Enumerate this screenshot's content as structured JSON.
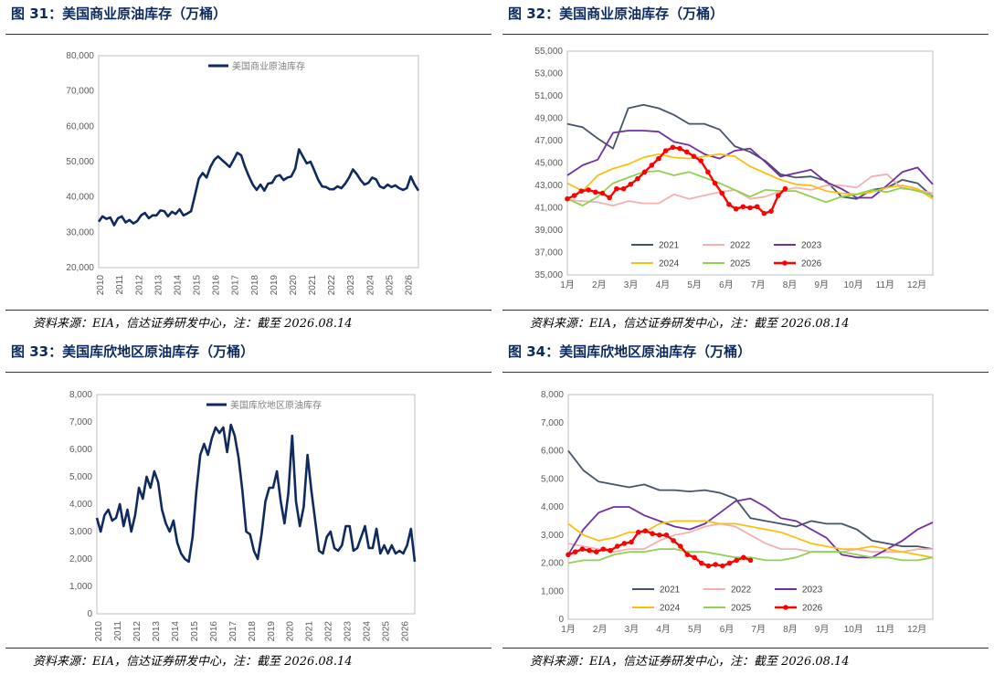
{
  "panels": [
    {
      "title": "图 31：美国商业原油库存（万桶）",
      "source": "资料来源：EIA，信达证券研发中心，注：截至 2026.08.14"
    },
    {
      "title": "图 32：美国商业原油库存（万桶）",
      "source": "资料来源：EIA，信达证券研发中心，注：截至 2026.08.14"
    },
    {
      "title": "图 33：美国库欣地区原油库存（万桶）",
      "source": "资料来源：EIA，信达证券研发中心，注：截至 2026.08.14"
    },
    {
      "title": "图 34：美国库欣地区原油库存（万桶）",
      "source": "资料来源：EIA，信达证券研发中心，注：截至 2026.08.14"
    }
  ],
  "chart_data": [
    {
      "type": "line",
      "title": "",
      "legend": [
        "美国商业原油库存"
      ],
      "legend_position": "top",
      "color": "#0f2a5e",
      "ylim": [
        20000,
        80000
      ],
      "yticks": [
        "20,000",
        "30,000",
        "40,000",
        "50,000",
        "60,000",
        "70,000",
        "80,000"
      ],
      "xticks": [
        "2010",
        "2011",
        "2012",
        "2013",
        "2014",
        "2015",
        "2016",
        "2017",
        "2018",
        "2019",
        "2020",
        "2021",
        "2022",
        "2023",
        "2024",
        "2025",
        "2026"
      ],
      "xlim": [
        2010,
        2026.6
      ],
      "x": [
        2010.0,
        2010.2,
        2010.4,
        2010.6,
        2010.8,
        2011.0,
        2011.2,
        2011.4,
        2011.6,
        2011.8,
        2012.0,
        2012.2,
        2012.4,
        2012.6,
        2012.8,
        2013.0,
        2013.2,
        2013.4,
        2013.6,
        2013.8,
        2014.0,
        2014.2,
        2014.4,
        2014.6,
        2014.8,
        2015.0,
        2015.2,
        2015.4,
        2015.6,
        2015.8,
        2016.0,
        2016.2,
        2016.4,
        2016.6,
        2016.8,
        2017.0,
        2017.2,
        2017.4,
        2017.6,
        2017.8,
        2018.0,
        2018.2,
        2018.4,
        2018.6,
        2018.8,
        2019.0,
        2019.2,
        2019.4,
        2019.6,
        2019.8,
        2020.0,
        2020.2,
        2020.4,
        2020.6,
        2020.8,
        2021.0,
        2021.2,
        2021.4,
        2021.6,
        2021.8,
        2022.0,
        2022.2,
        2022.4,
        2022.6,
        2022.8,
        2023.0,
        2023.2,
        2023.4,
        2023.6,
        2023.8,
        2024.0,
        2024.2,
        2024.4,
        2024.6,
        2024.8,
        2025.0,
        2025.2,
        2025.4,
        2025.6,
        2025.8,
        2026.0,
        2026.2,
        2026.4,
        2026.6
      ],
      "values": [
        33000,
        34500,
        33800,
        34200,
        32000,
        34000,
        34500,
        32800,
        33500,
        32500,
        33200,
        34800,
        35500,
        34000,
        34800,
        34800,
        36200,
        36000,
        34500,
        35800,
        35200,
        36500,
        34800,
        35300,
        36000,
        40500,
        45200,
        46800,
        45500,
        48500,
        50500,
        51500,
        50500,
        49500,
        48500,
        50500,
        52500,
        51800,
        48500,
        45800,
        43500,
        42000,
        43500,
        41800,
        43800,
        44000,
        45800,
        46200,
        44800,
        45500,
        45800,
        48000,
        53500,
        51500,
        49500,
        50000,
        47500,
        44800,
        43000,
        42800,
        42200,
        42200,
        43000,
        42500,
        43800,
        45500,
        47800,
        46500,
        44800,
        43500,
        44000,
        45500,
        45000,
        43000,
        42500,
        43500,
        42800,
        43300,
        42500,
        42000,
        42500,
        45800,
        43500,
        41800
      ]
    },
    {
      "type": "line",
      "title": "",
      "ylim": [
        35000,
        55000
      ],
      "yticks": [
        "35,000",
        "37,000",
        "39,000",
        "41,000",
        "43,000",
        "45,000",
        "47,000",
        "49,000",
        "51,000",
        "53,000",
        "55,000"
      ],
      "xticks": [
        "1月",
        "2月",
        "3月",
        "4月",
        "5月",
        "6月",
        "7月",
        "8月",
        "9月",
        "10月",
        "11月",
        "12月"
      ],
      "legend_position": "bottom-left",
      "series": [
        {
          "name": "2021",
          "color": "#44546a",
          "values": [
            48500,
            48200,
            47200,
            46300,
            49900,
            50200,
            49900,
            49300,
            48500,
            48500,
            48000,
            46500,
            46000,
            45200,
            44000,
            43700,
            43800,
            43400,
            42000,
            41800,
            42600,
            42800,
            43500,
            43200,
            42000
          ]
        },
        {
          "name": "2022",
          "color": "#f4b1ae",
          "values": [
            41700,
            41600,
            41500,
            41200,
            41600,
            41400,
            41400,
            42200,
            41800,
            42100,
            42400,
            42600,
            41800,
            42000,
            42500,
            42800,
            42600,
            43000,
            43000,
            42800,
            43800,
            44000,
            42700,
            42600,
            42300
          ]
        },
        {
          "name": "2023",
          "color": "#7030a0",
          "values": [
            43900,
            44800,
            45300,
            47700,
            47900,
            47900,
            47800,
            46900,
            46600,
            45800,
            45400,
            46100,
            46300,
            45100,
            43800,
            44100,
            44400,
            43300,
            42700,
            41900,
            41900,
            43000,
            44200,
            44600,
            43100
          ]
        },
        {
          "name": "2024",
          "color": "#fbbf13",
          "values": [
            43200,
            42500,
            43900,
            44500,
            44900,
            45500,
            45800,
            45500,
            45400,
            45600,
            45800,
            45600,
            44700,
            44100,
            43500,
            43100,
            43000,
            42500,
            42300,
            42200,
            42400,
            42800,
            43000,
            42700,
            41800
          ]
        },
        {
          "name": "2025",
          "color": "#92d050",
          "values": [
            41800,
            41200,
            42000,
            43200,
            43700,
            44200,
            44300,
            43900,
            44200,
            43700,
            43200,
            42600,
            42000,
            42600,
            42500,
            42500,
            42000,
            41500,
            42000,
            42200,
            42600,
            42400,
            42800,
            42500,
            42100
          ]
        },
        {
          "name": "2026",
          "color": "#ff0000",
          "markers": true,
          "values": [
            41800,
            42100,
            42500,
            42600,
            42400,
            42300,
            41900,
            42700,
            42700,
            43100,
            43600,
            44200,
            44800,
            45400,
            46100,
            46400,
            46300,
            46000,
            45600,
            45200,
            44200,
            43200,
            42300,
            41300,
            40900,
            41100,
            41000,
            41100,
            40500,
            40700,
            42100,
            42700
          ]
        }
      ]
    },
    {
      "type": "line",
      "title": "",
      "legend": [
        "美国库欣地区原油库存"
      ],
      "legend_position": "top",
      "color": "#0f2a5e",
      "ylim": [
        0,
        8000
      ],
      "yticks": [
        "0",
        "1,000",
        "2,000",
        "3,000",
        "4,000",
        "5,000",
        "6,000",
        "7,000",
        "8,000"
      ],
      "xticks": [
        "2010",
        "2011",
        "2012",
        "2013",
        "2014",
        "2015",
        "2016",
        "2017",
        "2018",
        "2019",
        "2020",
        "2021",
        "2022",
        "2023",
        "2024",
        "2025",
        "2026"
      ],
      "xlim": [
        2010,
        2026.6
      ],
      "x": [
        2010.0,
        2010.2,
        2010.4,
        2010.6,
        2010.8,
        2011.0,
        2011.2,
        2011.4,
        2011.6,
        2011.8,
        2012.0,
        2012.2,
        2012.4,
        2012.6,
        2012.8,
        2013.0,
        2013.2,
        2013.4,
        2013.6,
        2013.8,
        2014.0,
        2014.2,
        2014.4,
        2014.6,
        2014.8,
        2015.0,
        2015.2,
        2015.4,
        2015.6,
        2015.8,
        2016.0,
        2016.2,
        2016.4,
        2016.6,
        2016.8,
        2017.0,
        2017.2,
        2017.4,
        2017.6,
        2017.8,
        2018.0,
        2018.2,
        2018.4,
        2018.6,
        2018.8,
        2019.0,
        2019.2,
        2019.4,
        2019.6,
        2019.8,
        2020.0,
        2020.2,
        2020.4,
        2020.6,
        2020.8,
        2021.0,
        2021.2,
        2021.4,
        2021.6,
        2021.8,
        2022.0,
        2022.2,
        2022.4,
        2022.6,
        2022.8,
        2023.0,
        2023.2,
        2023.4,
        2023.6,
        2023.8,
        2024.0,
        2024.2,
        2024.4,
        2024.6,
        2024.8,
        2025.0,
        2025.2,
        2025.4,
        2025.6,
        2025.8,
        2026.0,
        2026.2,
        2026.4,
        2026.6
      ],
      "values": [
        3500,
        3000,
        3600,
        3800,
        3400,
        3500,
        4000,
        3200,
        3800,
        3000,
        3600,
        4600,
        4200,
        5000,
        4600,
        5200,
        4800,
        3800,
        3300,
        3000,
        3400,
        2600,
        2200,
        2000,
        1900,
        2800,
        4500,
        5800,
        6200,
        5800,
        6400,
        6800,
        6600,
        6800,
        5900,
        6900,
        6500,
        5700,
        4500,
        3000,
        2900,
        2300,
        2000,
        2900,
        4100,
        4600,
        4600,
        5200,
        4100,
        3300,
        4400,
        6500,
        4100,
        3200,
        3900,
        5800,
        4500,
        3400,
        2300,
        2200,
        2800,
        3000,
        2400,
        2300,
        2500,
        3200,
        3200,
        2300,
        2400,
        2800,
        3200,
        2400,
        2400,
        3100,
        2200,
        2500,
        2200,
        2500,
        2200,
        2300,
        2200,
        2500,
        3100,
        1900
      ]
    },
    {
      "type": "line",
      "title": "",
      "ylim": [
        0,
        8000
      ],
      "yticks": [
        "0",
        "1,000",
        "2,000",
        "3,000",
        "4,000",
        "5,000",
        "6,000",
        "7,000",
        "8,000"
      ],
      "xticks": [
        "1月",
        "2月",
        "3月",
        "4月",
        "5月",
        "6月",
        "7月",
        "8月",
        "9月",
        "10月",
        "11月",
        "12月"
      ],
      "legend_position": "bottom-left",
      "series": [
        {
          "name": "2021",
          "color": "#44546a",
          "values": [
            6000,
            5300,
            4900,
            4800,
            4700,
            4800,
            4600,
            4600,
            4550,
            4600,
            4500,
            4300,
            3600,
            3500,
            3400,
            3300,
            3500,
            3400,
            3400,
            3200,
            2800,
            2700,
            2600,
            2600,
            2500
          ]
        },
        {
          "name": "2022",
          "color": "#f4b1ae",
          "values": [
            2700,
            2600,
            2500,
            2400,
            2500,
            2500,
            2800,
            3000,
            3100,
            3300,
            3400,
            3300,
            3000,
            2700,
            2500,
            2500,
            2400,
            2400,
            2400,
            2500,
            2400,
            2400,
            2400,
            2500,
            2500
          ]
        },
        {
          "name": "2023",
          "color": "#7030a0",
          "values": [
            2300,
            3200,
            3800,
            4000,
            4000,
            3700,
            3500,
            3300,
            3200,
            3400,
            3800,
            4200,
            4300,
            4000,
            3600,
            3500,
            3200,
            2900,
            2300,
            2200,
            2200,
            2500,
            2800,
            3200,
            3450
          ]
        },
        {
          "name": "2024",
          "color": "#fbbf13",
          "values": [
            3400,
            3000,
            2800,
            2900,
            3100,
            3100,
            3400,
            3500,
            3500,
            3500,
            3400,
            3400,
            3300,
            3200,
            3100,
            2900,
            2700,
            2600,
            2500,
            2500,
            2600,
            2500,
            2400,
            2300,
            2200
          ]
        },
        {
          "name": "2025",
          "color": "#92d050",
          "values": [
            2000,
            2100,
            2100,
            2300,
            2400,
            2400,
            2500,
            2500,
            2400,
            2400,
            2300,
            2200,
            2200,
            2100,
            2100,
            2200,
            2400,
            2400,
            2400,
            2300,
            2200,
            2200,
            2100,
            2100,
            2200
          ]
        },
        {
          "name": "2026",
          "color": "#ff0000",
          "markers": true,
          "values": [
            2300,
            2400,
            2500,
            2450,
            2400,
            2500,
            2450,
            2600,
            2700,
            2750,
            3100,
            3150,
            3050,
            3000,
            3000,
            2800,
            2600,
            2300,
            2200,
            2000,
            1900,
            1950,
            1900,
            2000,
            2100,
            2200,
            2100
          ]
        }
      ]
    }
  ]
}
